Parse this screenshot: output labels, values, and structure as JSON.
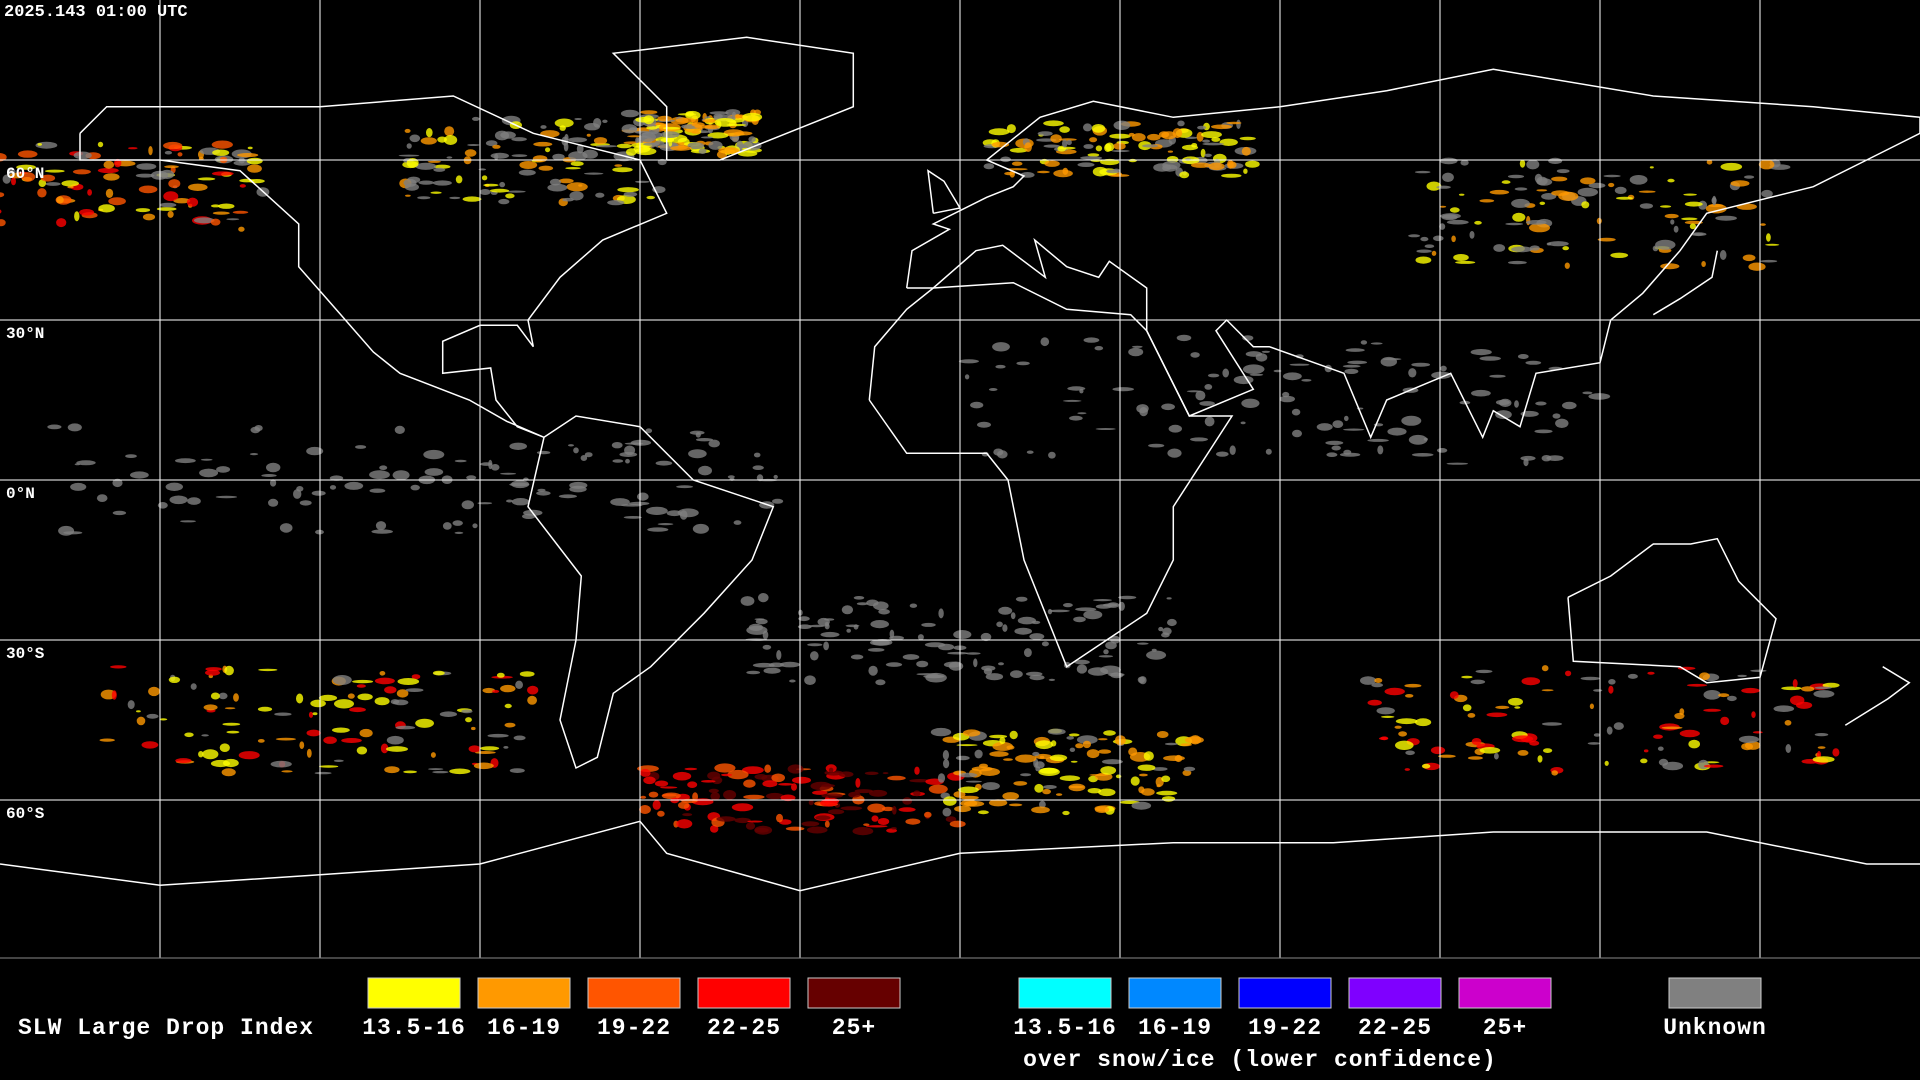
{
  "header": {
    "timestamp": "2025.143 01:00 UTC"
  },
  "map": {
    "latitude_labels": [
      "60°N",
      "30°N",
      "0°N",
      "30°S",
      "60°S"
    ]
  },
  "legend": {
    "title": "SLW Large Drop Index",
    "classes": [
      {
        "label": "13.5-16",
        "color": "#ffff00"
      },
      {
        "label": "16-19",
        "color": "#ff9900"
      },
      {
        "label": "19-22",
        "color": "#ff5500"
      },
      {
        "label": "22-25",
        "color": "#ff0000"
      },
      {
        "label": "25+",
        "color": "#660000"
      }
    ],
    "snow_ice_classes": [
      {
        "label": "13.5-16",
        "color": "#00ffff"
      },
      {
        "label": "16-19",
        "color": "#0088ff"
      },
      {
        "label": "19-22",
        "color": "#0000ff"
      },
      {
        "label": "22-25",
        "color": "#7f00ff"
      },
      {
        "label": "25+",
        "color": "#cc00cc"
      }
    ],
    "snow_ice_caption": "over snow/ice (lower confidence)",
    "unknown": {
      "label": "Unknown",
      "color": "#808080"
    }
  }
}
